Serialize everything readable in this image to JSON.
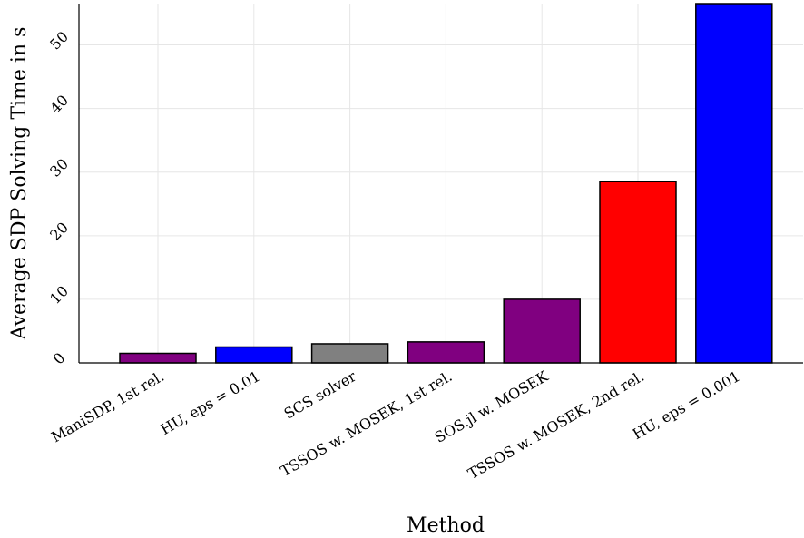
{
  "chart_data": {
    "type": "bar",
    "title": "",
    "xlabel": "Method",
    "ylabel": "Average SDP Solving Time in s",
    "categories": [
      "ManiSDP, 1st rel.",
      "HU, eps = 0.01",
      "SCS solver",
      "TSSOS w. MOSEK, 1st rel.",
      "SOS.jl w. MOSEK",
      "TSSOS w. MOSEK, 2nd rel.",
      "HU, eps = 0.001"
    ],
    "values": [
      1.5,
      2.5,
      3.0,
      3.3,
      10.0,
      28.5,
      56.5
    ],
    "colors": [
      "#800080",
      "#0000ff",
      "#808080",
      "#800080",
      "#800080",
      "#ff0000",
      "#0000ff"
    ],
    "ylim": [
      0,
      56.5
    ],
    "yticks": [
      0,
      10,
      20,
      30,
      40,
      50
    ],
    "grid": true,
    "legend": "none"
  }
}
